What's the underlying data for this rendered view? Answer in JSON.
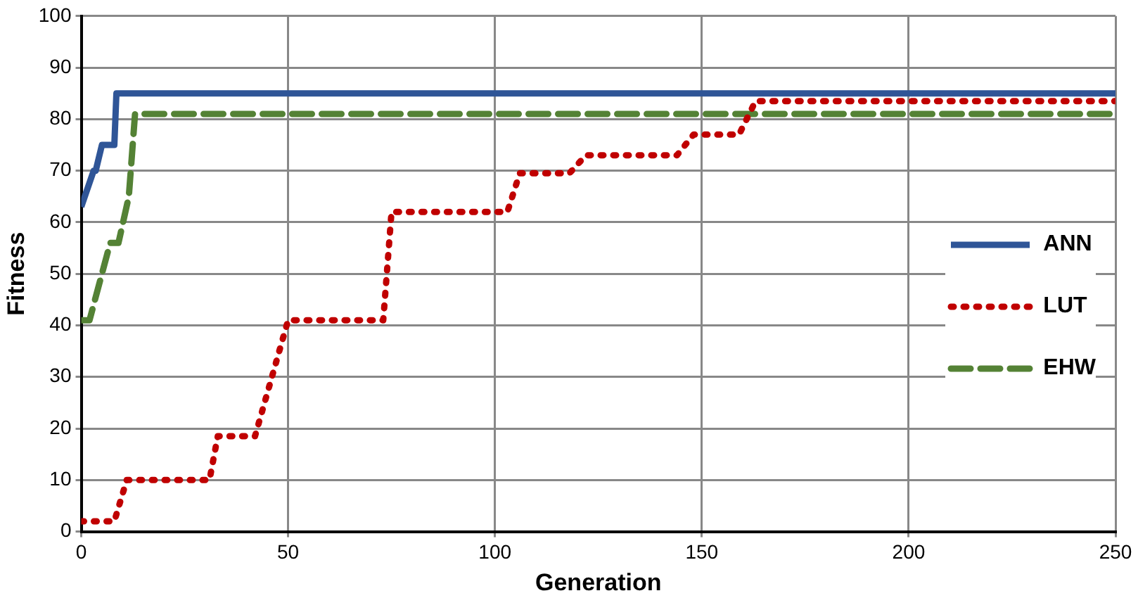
{
  "chart_data": {
    "type": "line",
    "xlabel": "Generation",
    "ylabel": "Fitness",
    "xlim": [
      0,
      250
    ],
    "xticks": [
      0,
      50,
      100,
      150,
      200,
      250
    ],
    "ylim": [
      0,
      100
    ],
    "yticks": [
      0,
      10,
      20,
      30,
      40,
      50,
      60,
      70,
      80,
      90,
      100
    ],
    "grid": true,
    "legend": "right",
    "marker": "none",
    "series": [
      {
        "name": "ANN",
        "color": "#2f5597",
        "line_style": "solid",
        "x": [
          0,
          3,
          3.5,
          5,
          5.5,
          8,
          8.5,
          250
        ],
        "values": [
          63,
          70,
          70,
          75,
          75,
          75,
          85,
          85
        ]
      },
      {
        "name": "LUT",
        "color": "#c00000",
        "line_style": "dotted",
        "x": [
          0,
          8,
          11,
          31,
          33,
          42,
          50,
          73,
          75,
          103,
          106,
          118,
          122,
          144,
          148,
          159,
          163,
          250
        ],
        "values": [
          2,
          2,
          10,
          10,
          18.5,
          18.5,
          41,
          41,
          62,
          62,
          69.5,
          69.5,
          73,
          73,
          77,
          77,
          83.5,
          83.5
        ]
      },
      {
        "name": "EHW",
        "color": "#548235",
        "line_style": "dashed",
        "x": [
          0,
          2,
          7,
          9,
          11.5,
          13,
          250
        ],
        "values": [
          41,
          41,
          56,
          56,
          65,
          81,
          81
        ]
      }
    ]
  }
}
